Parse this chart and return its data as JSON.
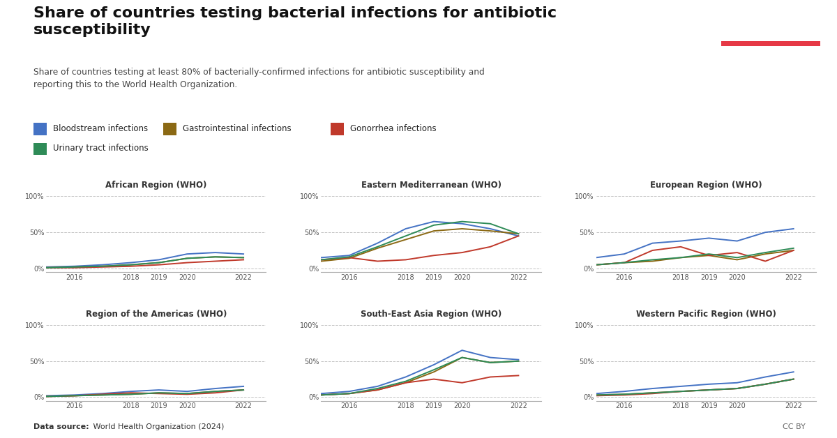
{
  "title": "Share of countries testing bacterial infections for antibiotic\nsusceptibility",
  "subtitle": "Share of countries testing at least 80% of bacterially-confirmed infections for antibiotic susceptibility and\nreporting this to the World Health Organization.",
  "datasource_bold": "Data source:",
  "datasource_rest": " World Health Organization (2024)",
  "ccby": "CC BY",
  "years": [
    2015,
    2016,
    2017,
    2018,
    2019,
    2020,
    2021,
    2022
  ],
  "xtick_labels": [
    "2016",
    "2018",
    "2019",
    "2020",
    "2022"
  ],
  "xtick_positions": [
    2016,
    2018,
    2019,
    2020,
    2022
  ],
  "series": [
    "Bloodstream infections",
    "Gastrointestinal infections",
    "Gonorrhea infections",
    "Urinary tract infections"
  ],
  "colors": [
    "#4472C4",
    "#8B6914",
    "#C0392B",
    "#2E8B57"
  ],
  "regions": [
    "African Region (WHO)",
    "Eastern Mediterranean (WHO)",
    "European Region (WHO)",
    "Region of the Americas (WHO)",
    "South-East Asia Region (WHO)",
    "Western Pacific Region (WHO)"
  ],
  "data": {
    "African Region (WHO)": {
      "Bloodstream infections": [
        2,
        3,
        5,
        8,
        12,
        20,
        22,
        20
      ],
      "Gastrointestinal infections": [
        1,
        2,
        3,
        5,
        8,
        14,
        16,
        15
      ],
      "Gonorrhea infections": [
        1,
        1,
        2,
        3,
        5,
        8,
        10,
        12
      ],
      "Urinary tract infections": [
        1,
        2,
        3,
        5,
        8,
        14,
        16,
        15
      ]
    },
    "Eastern Mediterranean (WHO)": {
      "Bloodstream infections": [
        15,
        18,
        35,
        55,
        65,
        62,
        55,
        45
      ],
      "Gastrointestinal infections": [
        10,
        14,
        28,
        40,
        52,
        55,
        52,
        48
      ],
      "Gonorrhea infections": [
        12,
        15,
        10,
        12,
        18,
        22,
        30,
        45
      ],
      "Urinary tract infections": [
        12,
        16,
        30,
        45,
        60,
        65,
        62,
        48
      ]
    },
    "European Region (WHO)": {
      "Bloodstream infections": [
        15,
        20,
        35,
        38,
        42,
        38,
        50,
        55
      ],
      "Gastrointestinal infections": [
        5,
        8,
        10,
        15,
        18,
        12,
        20,
        25
      ],
      "Gonorrhea infections": [
        5,
        8,
        25,
        30,
        18,
        22,
        10,
        25
      ],
      "Urinary tract infections": [
        5,
        8,
        12,
        15,
        20,
        15,
        22,
        28
      ]
    },
    "Region of the Americas (WHO)": {
      "Bloodstream infections": [
        2,
        3,
        5,
        8,
        10,
        8,
        12,
        15
      ],
      "Gastrointestinal infections": [
        1,
        2,
        3,
        4,
        6,
        5,
        8,
        10
      ],
      "Gonorrhea infections": [
        1,
        2,
        4,
        6,
        5,
        4,
        6,
        10
      ],
      "Urinary tract infections": [
        1,
        2,
        3,
        4,
        6,
        5,
        8,
        10
      ]
    },
    "South-East Asia Region (WHO)": {
      "Bloodstream infections": [
        5,
        8,
        15,
        28,
        45,
        65,
        55,
        52
      ],
      "Gastrointestinal infections": [
        3,
        5,
        10,
        20,
        35,
        55,
        48,
        50
      ],
      "Gonorrhea infections": [
        3,
        5,
        10,
        20,
        25,
        20,
        28,
        30
      ],
      "Urinary tract infections": [
        3,
        5,
        12,
        22,
        38,
        55,
        48,
        50
      ]
    },
    "Western Pacific Region (WHO)": {
      "Bloodstream infections": [
        5,
        8,
        12,
        15,
        18,
        20,
        28,
        35
      ],
      "Gastrointestinal infections": [
        3,
        4,
        6,
        8,
        10,
        12,
        18,
        25
      ],
      "Gonorrhea infections": [
        2,
        3,
        5,
        8,
        10,
        12,
        18,
        25
      ],
      "Urinary tract infections": [
        3,
        4,
        6,
        8,
        10,
        12,
        18,
        25
      ]
    }
  },
  "background_color": "#FFFFFF",
  "logo_bg": "#1D3557",
  "logo_red": "#E63946",
  "ylim": [
    -5,
    108
  ],
  "yticks": [
    0,
    50,
    100
  ],
  "ytick_labels": [
    "0%",
    "50%",
    "100%"
  ]
}
